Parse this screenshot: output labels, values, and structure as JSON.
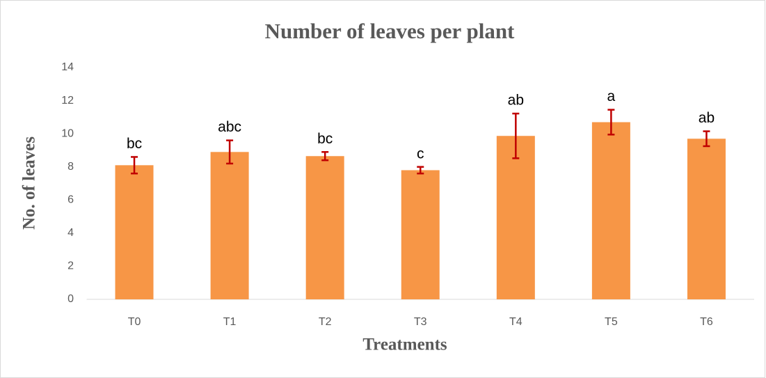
{
  "chart_data": {
    "type": "bar",
    "title": "Number of leaves per plant",
    "x_label": "Treatments",
    "y_label": "No. of leaves",
    "categories": [
      "T0",
      "T1",
      "T2",
      "T3",
      "T4",
      "T5",
      "T6"
    ],
    "values": [
      8.1,
      8.9,
      8.65,
      7.8,
      9.87,
      10.7,
      9.7
    ],
    "errors": [
      0.5,
      0.7,
      0.25,
      0.2,
      1.35,
      0.75,
      0.45
    ],
    "letters": [
      "bc",
      "abc",
      "bc",
      "c",
      "ab",
      "a",
      "ab"
    ],
    "color": "#f79646",
    "error_color": "#c00000",
    "ylim": [
      0,
      14
    ],
    "yticks": [
      0,
      2,
      4,
      6,
      8,
      10,
      12,
      14
    ],
    "grid": false
  }
}
